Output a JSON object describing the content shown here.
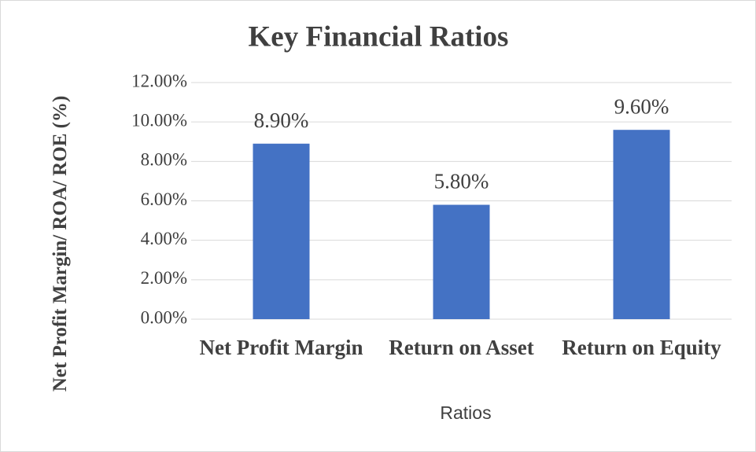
{
  "chart_data": {
    "type": "bar",
    "title": "Key Financial Ratios",
    "x_label": "Ratios",
    "y_label": "Net Profit Margin/ ROA/ ROE (%)",
    "categories": [
      "Net Profit Margin",
      "Return on Asset",
      "Return on Equity"
    ],
    "values": [
      8.9,
      5.8,
      9.6
    ],
    "value_labels": [
      "8.90%",
      "5.80%",
      "9.60%"
    ],
    "color": "#4472c4",
    "ylim": [
      0,
      12
    ],
    "yticks": [
      {
        "value": 0,
        "label": "0.00%"
      },
      {
        "value": 2,
        "label": "2.00%"
      },
      {
        "value": 4,
        "label": "4.00%"
      },
      {
        "value": 6,
        "label": "6.00%"
      },
      {
        "value": 8,
        "label": "8.00%"
      },
      {
        "value": 10,
        "label": "10.00%"
      },
      {
        "value": 12,
        "label": "12.00%"
      }
    ],
    "grid": true
  }
}
